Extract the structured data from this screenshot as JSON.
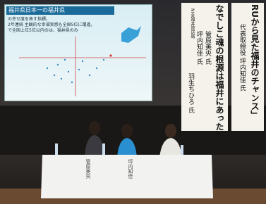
{
  "screen": {
    "title": "福井県日本一の福井県",
    "lines": [
      "の幸せ度を表す指標。",
      "2年連続 主観的な幸福実感も全国5位に躍進。",
      "で全国上位5位以内のは、福井県のみ"
    ]
  },
  "banner_center": {
    "title": "なでしこ魂の根源は福井にあった」",
    "speakers": [
      "管原美央 氏",
      "坪内知佳 氏",
      "羽生ちひろ 氏"
    ],
    "affiliation": "NHK福井放送局"
  },
  "banner_right": {
    "title": "RUから見た福井のチャンス」",
    "subtitle": "代表取締役 坪内知佳 氏"
  },
  "name_cards": [
    "管原美央",
    "坪内知佳"
  ]
}
